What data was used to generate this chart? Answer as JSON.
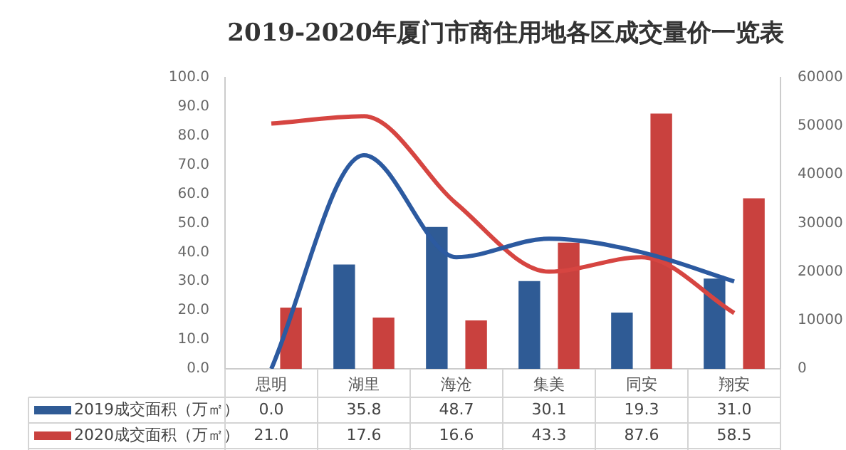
{
  "chart_data": {
    "type": "bar",
    "title": "2019-2020年厦门市商住用地各区成交量价一览表",
    "categories": [
      "思明",
      "湖里",
      "海沧",
      "集美",
      "同安",
      "翔安"
    ],
    "series": [
      {
        "name": "2019成交面积（万㎡）",
        "color": "#2f5b95",
        "values": [
          0.0,
          35.8,
          48.7,
          30.1,
          19.3,
          31.0
        ],
        "value_labels": [
          "0.0",
          "35.8",
          "48.7",
          "30.1",
          "19.3",
          "31.0"
        ]
      },
      {
        "name": "2020成交面积（万㎡）",
        "color": "#c9413e",
        "values": [
          21.0,
          17.6,
          16.6,
          43.3,
          87.6,
          58.5
        ],
        "value_labels": [
          "21.0",
          "17.6",
          "16.6",
          "43.3",
          "87.6",
          "58.5"
        ]
      },
      {
        "type": "line",
        "axis": "y2",
        "color": "#2c5aa0",
        "values": [
          0,
          44000,
          23000,
          26800,
          24000,
          18000
        ]
      },
      {
        "type": "line",
        "axis": "y2",
        "color": "#d64541",
        "values": [
          50500,
          52000,
          34000,
          20000,
          23000,
          11500
        ]
      }
    ],
    "ylim": [
      0,
      100
    ],
    "yticks": [
      {
        "value": 0,
        "label": "0.0"
      },
      {
        "value": 10,
        "label": "10.0"
      },
      {
        "value": 20,
        "label": "20.0"
      },
      {
        "value": 30,
        "label": "30.0"
      },
      {
        "value": 40,
        "label": "40.0"
      },
      {
        "value": 50,
        "label": "50.0"
      },
      {
        "value": 60,
        "label": "60.0"
      },
      {
        "value": 70,
        "label": "70.0"
      },
      {
        "value": 80,
        "label": "80.0"
      },
      {
        "value": 90,
        "label": "90.0"
      },
      {
        "value": 100,
        "label": "100.0"
      }
    ],
    "y2lim": [
      0,
      60000
    ],
    "y2ticks": [
      0,
      10000,
      20000,
      30000,
      40000,
      50000,
      60000
    ],
    "legend": "bottom left",
    "grid": false,
    "marker": "none"
  }
}
